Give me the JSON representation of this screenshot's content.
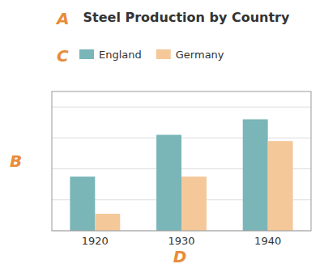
{
  "chart_data": {
    "type": "bar",
    "title": "Steel Production by Country",
    "categories": [
      "1920",
      "1930",
      "1940"
    ],
    "series": [
      {
        "name": "England",
        "color": "#7AB5B8",
        "values": [
          3.5,
          6.2,
          7.2
        ]
      },
      {
        "name": "Germany",
        "color": "#F5C89A",
        "values": [
          1.1,
          3.5,
          5.8
        ]
      }
    ],
    "ylim": [
      0,
      9
    ],
    "yticks": [
      0,
      2,
      4,
      6,
      8
    ],
    "grid": true,
    "legend": "top",
    "tick_labels": "x",
    "annotations": [
      {
        "text": "A",
        "color": "#E88C3A"
      },
      {
        "text": "B",
        "color": "#E88C3A"
      },
      {
        "text": "C",
        "color": "#E88C3A"
      },
      {
        "text": "D",
        "color": "#E88C3A"
      }
    ]
  }
}
